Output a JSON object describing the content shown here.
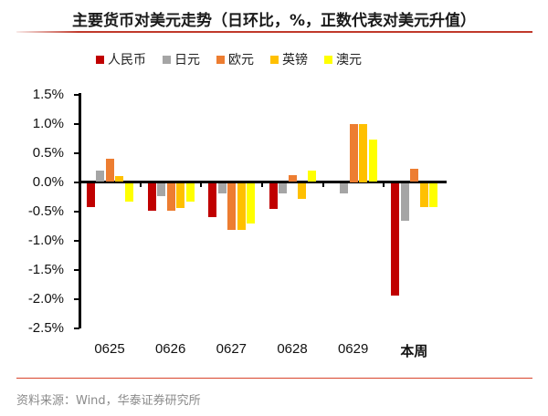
{
  "title": "主要货币对美元走势（日环比，%，正数代表对美元升值）",
  "source": "资料来源：Wind，华泰证券研究所",
  "chart_data": {
    "type": "bar",
    "title": "主要货币对美元走势（日环比，%，正数代表对美元升值）",
    "xlabel": "",
    "ylabel": "",
    "ylim": [
      -2.5,
      1.5
    ],
    "y_ticks": [
      "1.5%",
      "1.0%",
      "0.5%",
      "0.0%",
      "-0.5%",
      "-1.0%",
      "-1.5%",
      "-2.0%",
      "-2.5%"
    ],
    "legend_position": "top",
    "grid": false,
    "categories": [
      "0625",
      "0626",
      "0627",
      "0628",
      "0629",
      "本周"
    ],
    "series": [
      {
        "name": "人民币",
        "color": "#c00000",
        "values": [
          -0.42,
          -0.48,
          -0.58,
          -0.45,
          0.0,
          -1.93
        ]
      },
      {
        "name": "日元",
        "color": "#a5a5a5",
        "values": [
          0.2,
          -0.22,
          -0.18,
          -0.18,
          -0.18,
          -0.65
        ]
      },
      {
        "name": "欧元",
        "color": "#ed7d31",
        "values": [
          0.4,
          -0.47,
          -0.8,
          0.12,
          1.0,
          0.22
        ]
      },
      {
        "name": "英镑",
        "color": "#ffc000",
        "values": [
          0.1,
          -0.43,
          -0.8,
          -0.27,
          1.0,
          -0.42
        ]
      },
      {
        "name": "澳元",
        "color": "#ffff00",
        "values": [
          -0.32,
          -0.32,
          -0.7,
          0.2,
          0.72,
          -0.42
        ]
      }
    ]
  }
}
